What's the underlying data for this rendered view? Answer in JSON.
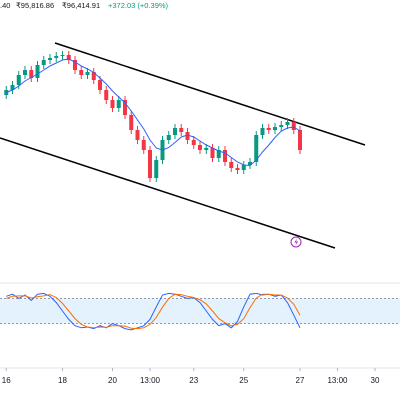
{
  "header": {
    "items": [
      ".40",
      "₹95,816.86",
      "₹96,414.91",
      "+372.03 (+0.39%)"
    ]
  },
  "chart_data": {
    "type": "candlestick",
    "up_color": "#089981",
    "down_color": "#f23645",
    "ma_color": "#2962ff",
    "ylim": [
      93800,
      99000
    ],
    "xlim": [
      -1,
      63
    ],
    "xticks": [
      {
        "value": 0,
        "label": "16"
      },
      {
        "value": 9,
        "label": "18"
      },
      {
        "value": 17,
        "label": "20"
      },
      {
        "value": 23,
        "label": "13:00"
      },
      {
        "value": 30,
        "label": "23"
      },
      {
        "value": 38,
        "label": "25"
      },
      {
        "value": 47,
        "label": "27"
      },
      {
        "value": 53,
        "label": "13:00"
      },
      {
        "value": 59,
        "label": "30"
      }
    ],
    "open": [
      97100,
      97200,
      97300,
      97500,
      97600,
      97440,
      97700,
      97800,
      97840,
      97880,
      97900,
      97800,
      97600,
      97500,
      97560,
      97400,
      97200,
      97000,
      96840,
      97000,
      96700,
      96400,
      96200,
      96000,
      95440,
      95800,
      96200,
      96300,
      96440,
      96360,
      96200,
      96100,
      96000,
      96040,
      95840,
      96000,
      95760,
      95640,
      95600,
      95700,
      95760,
      96300,
      96440,
      96400,
      96460,
      96500,
      96560,
      96400
    ],
    "high": [
      97280,
      97380,
      97580,
      97680,
      97680,
      97780,
      97880,
      97920,
      97960,
      97980,
      97980,
      97880,
      97680,
      97640,
      97640,
      97480,
      97280,
      97080,
      97080,
      97080,
      96780,
      96480,
      96280,
      96080,
      95880,
      96280,
      96380,
      96520,
      96520,
      96440,
      96280,
      96180,
      96120,
      96120,
      96080,
      96080,
      95840,
      95720,
      95780,
      95840,
      96380,
      96520,
      96520,
      96540,
      96580,
      96640,
      96640,
      96480
    ],
    "low": [
      97020,
      97120,
      97220,
      97420,
      97360,
      97360,
      97620,
      97720,
      97760,
      97800,
      97720,
      97520,
      97420,
      97420,
      97320,
      97120,
      96920,
      96760,
      96760,
      96620,
      96320,
      96120,
      95920,
      95360,
      95360,
      95720,
      96120,
      96220,
      96280,
      96120,
      96020,
      95920,
      95920,
      95760,
      95760,
      95680,
      95560,
      95520,
      95520,
      95620,
      95680,
      96220,
      96320,
      96320,
      96380,
      96420,
      96320,
      95920
    ],
    "close": [
      97200,
      97300,
      97500,
      97600,
      97440,
      97700,
      97800,
      97840,
      97880,
      97900,
      97800,
      97600,
      97500,
      97560,
      97400,
      97200,
      97000,
      96840,
      97000,
      96700,
      96400,
      96200,
      96000,
      95440,
      95800,
      96200,
      96300,
      96440,
      96360,
      96200,
      96100,
      96000,
      96040,
      95840,
      96000,
      95760,
      95640,
      95600,
      95700,
      95760,
      96300,
      96440,
      96400,
      96460,
      96500,
      96560,
      96400,
      96000
    ],
    "ma": [
      97150,
      97200,
      97280,
      97380,
      97450,
      97520,
      97600,
      97680,
      97740,
      97800,
      97820,
      97760,
      97680,
      97620,
      97550,
      97440,
      97320,
      97180,
      97060,
      96940,
      96780,
      96600,
      96420,
      96200,
      96040,
      96000,
      96050,
      96150,
      96260,
      96300,
      96260,
      96180,
      96100,
      96040,
      95980,
      95940,
      95850,
      95760,
      95700,
      95690,
      95800,
      95960,
      96100,
      96250,
      96380,
      96440,
      96460,
      96380
    ],
    "oscillator": {
      "ylim": [
        0,
        100
      ],
      "band": [
        20,
        80
      ],
      "band_color": "#2196f3",
      "series": [
        {
          "color": "#2962ff",
          "values": [
            85,
            90,
            80,
            88,
            75,
            90,
            92,
            85,
            70,
            50,
            30,
            15,
            10,
            12,
            8,
            15,
            10,
            20,
            15,
            8,
            5,
            10,
            15,
            30,
            60,
            88,
            92,
            90,
            85,
            80,
            82,
            70,
            50,
            30,
            15,
            20,
            10,
            25,
            60,
            90,
            92,
            88,
            90,
            85,
            88,
            70,
            40,
            10
          ]
        },
        {
          "color": "#ff6d00",
          "values": [
            80,
            85,
            86,
            86,
            81,
            84,
            86,
            89,
            82,
            68,
            50,
            32,
            18,
            12,
            10,
            12,
            11,
            15,
            15,
            14,
            9,
            8,
            10,
            18,
            35,
            59,
            80,
            90,
            89,
            85,
            82,
            77,
            67,
            50,
            32,
            22,
            15,
            18,
            32,
            58,
            81,
            90,
            90,
            88,
            88,
            81,
            66,
            40
          ]
        }
      ]
    }
  }
}
